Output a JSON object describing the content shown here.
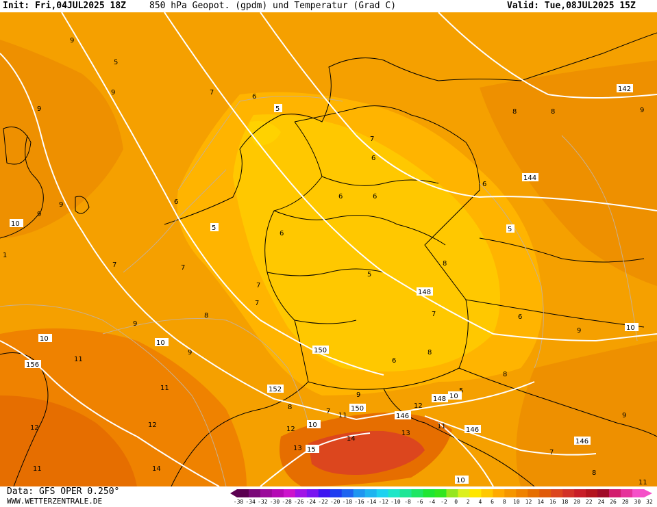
{
  "header": {
    "init": "Init: Fri,04JUL2025 18Z",
    "title": "850 hPa Geopot. (gpdm) und Temperatur (Grad C)",
    "valid": "Valid: Tue,08JUL2025 15Z"
  },
  "footer": {
    "source": "Data: GFS OPER 0.250°",
    "website": "WWW.WETTERZENTRALE.DE"
  },
  "colorbar": {
    "ticks": [
      "-38",
      "-34",
      "-32",
      "-30",
      "-28",
      "-26",
      "-24",
      "-22",
      "-20",
      "-18",
      "-16",
      "-14",
      "-12",
      "-10",
      "-8",
      "-6",
      "-4",
      "-2",
      "0",
      "2",
      "4",
      "6",
      "8",
      "10",
      "12",
      "14",
      "16",
      "18",
      "20",
      "22",
      "24",
      "26",
      "28",
      "30",
      "32"
    ],
    "colors": [
      "#5a0050",
      "#7a0a78",
      "#9a0a9a",
      "#b40ab4",
      "#cc14cc",
      "#a014e6",
      "#7814f0",
      "#3c14f0",
      "#1e3cf0",
      "#1e64f0",
      "#1e96f0",
      "#1eb4f0",
      "#1ed2f0",
      "#1ee6c8",
      "#1ee696",
      "#1ee664",
      "#1ee632",
      "#32e61e",
      "#96e61e",
      "#dcf01e",
      "#ffe600",
      "#ffc800",
      "#ffaa00",
      "#f59600",
      "#ef8200",
      "#e66e00",
      "#e05a0a",
      "#dc461e",
      "#d23228",
      "#c81e28",
      "#b4141e",
      "#a00a28",
      "#d21e6e",
      "#e6329a",
      "#f550c8"
    ]
  },
  "geopotential_labels": [
    "142",
    "144",
    "146",
    "146",
    "146",
    "148",
    "148",
    "150",
    "150",
    "152",
    "156"
  ],
  "temperature_labels": [
    "5",
    "5",
    "5",
    "5",
    "5",
    "5",
    "6",
    "6",
    "6",
    "6",
    "6",
    "6",
    "6",
    "6",
    "6",
    "7",
    "7",
    "7",
    "7",
    "7",
    "7",
    "7",
    "7",
    "7",
    "8",
    "8",
    "8",
    "8",
    "8",
    "8",
    "8",
    "8",
    "9",
    "9",
    "9",
    "9",
    "9",
    "9",
    "9",
    "9",
    "9",
    "9",
    "9",
    "10",
    "10",
    "10",
    "10",
    "10",
    "10",
    "10",
    "11",
    "11",
    "11",
    "11",
    "11",
    "11",
    "12",
    "12",
    "12",
    "12",
    "13",
    "13",
    "14",
    "14",
    "15",
    "1"
  ],
  "legend_colors": {
    "warm_field": "#f5a000",
    "cool_field": "#ffc800",
    "hot_field": "#e66e00"
  }
}
